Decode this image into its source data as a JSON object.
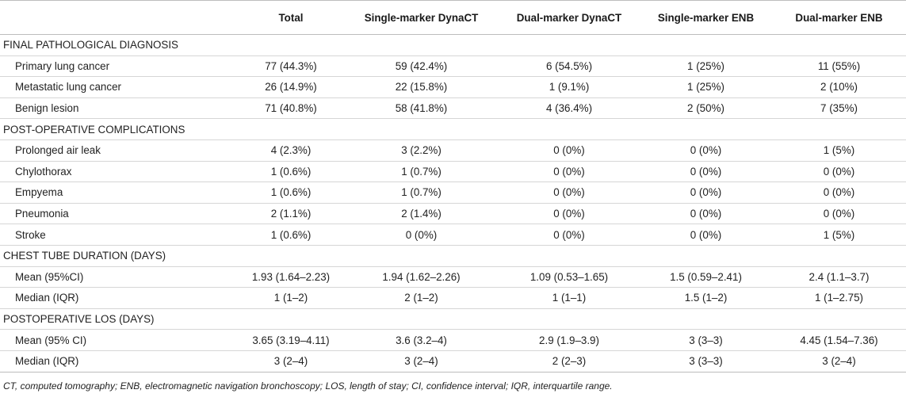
{
  "header": {
    "columns": [
      "",
      "Total",
      "Single-marker DynaCT",
      "Dual-marker DynaCT",
      "Single-marker ENB",
      "Dual-marker ENB"
    ]
  },
  "rows": [
    {
      "type": "section",
      "label": "FINAL PATHOLOGICAL DIAGNOSIS"
    },
    {
      "type": "data",
      "label": "Primary lung cancer",
      "values": [
        "77 (44.3%)",
        "59 (42.4%)",
        "6 (54.5%)",
        "1 (25%)",
        "11 (55%)"
      ]
    },
    {
      "type": "data",
      "label": "Metastatic lung cancer",
      "values": [
        "26 (14.9%)",
        "22 (15.8%)",
        "1 (9.1%)",
        "1 (25%)",
        "2 (10%)"
      ]
    },
    {
      "type": "data",
      "label": "Benign lesion",
      "values": [
        "71 (40.8%)",
        "58 (41.8%)",
        "4 (36.4%)",
        "2 (50%)",
        "7 (35%)"
      ]
    },
    {
      "type": "section",
      "label": "POST-OPERATIVE COMPLICATIONS"
    },
    {
      "type": "data",
      "label": "Prolonged air leak",
      "values": [
        "4 (2.3%)",
        "3 (2.2%)",
        "0 (0%)",
        "0 (0%)",
        "1 (5%)"
      ]
    },
    {
      "type": "data",
      "label": "Chylothorax",
      "values": [
        "1 (0.6%)",
        "1 (0.7%)",
        "0 (0%)",
        "0 (0%)",
        "0 (0%)"
      ]
    },
    {
      "type": "data",
      "label": "Empyema",
      "values": [
        "1 (0.6%)",
        "1 (0.7%)",
        "0 (0%)",
        "0 (0%)",
        "0 (0%)"
      ]
    },
    {
      "type": "data",
      "label": "Pneumonia",
      "values": [
        "2 (1.1%)",
        "2 (1.4%)",
        "0 (0%)",
        "0 (0%)",
        "0 (0%)"
      ]
    },
    {
      "type": "data",
      "label": "Stroke",
      "values": [
        "1 (0.6%)",
        "0 (0%)",
        "0 (0%)",
        "0 (0%)",
        "1 (5%)"
      ]
    },
    {
      "type": "section",
      "label": "CHEST TUBE DURATION (DAYS)"
    },
    {
      "type": "data",
      "label": "Mean (95%CI)",
      "values": [
        "1.93 (1.64–2.23)",
        "1.94 (1.62–2.26)",
        "1.09 (0.53–1.65)",
        "1.5 (0.59–2.41)",
        "2.4 (1.1–3.7)"
      ]
    },
    {
      "type": "data",
      "label": "Median (IQR)",
      "values": [
        "1 (1–2)",
        "2 (1–2)",
        "1 (1–1)",
        "1.5 (1–2)",
        "1 (1–2.75)"
      ]
    },
    {
      "type": "section",
      "label": "POSTOPERATIVE LOS (DAYS)"
    },
    {
      "type": "data",
      "label": "Mean (95% CI)",
      "values": [
        "3.65 (3.19–4.11)",
        "3.6 (3.2–4)",
        "2.9 (1.9–3.9)",
        "3 (3–3)",
        "4.45 (1.54–7.36)"
      ]
    },
    {
      "type": "data",
      "label": "Median (IQR)",
      "values": [
        "3 (2–4)",
        "3 (2–4)",
        "2 (2–3)",
        "3 (3–3)",
        "3 (2–4)"
      ]
    }
  ],
  "footnote": "CT, computed tomography; ENB, electromagnetic navigation bronchoscopy; LOS, length of stay; CI, confidence interval; IQR, interquartile range."
}
